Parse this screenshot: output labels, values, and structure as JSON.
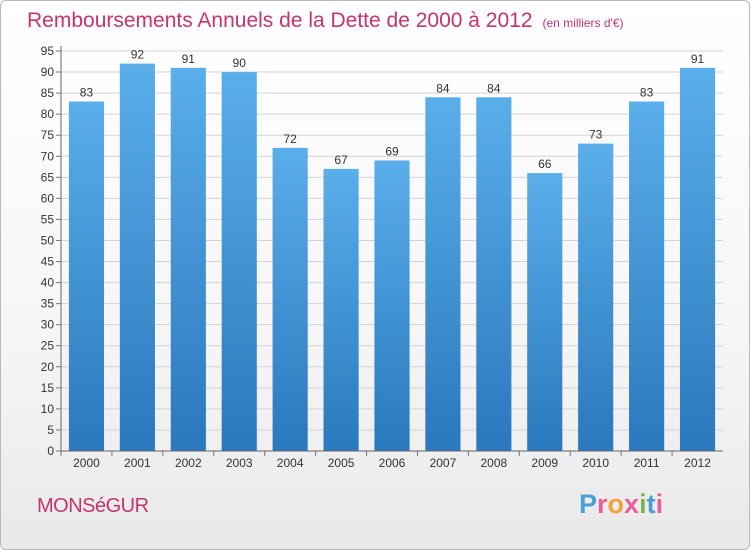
{
  "chart_data": {
    "type": "bar",
    "title": "Remboursements Annuels de la Dette de 2000 à 2012",
    "subtitle": "(en milliers d'€)",
    "categories": [
      "2000",
      "2001",
      "2002",
      "2003",
      "2004",
      "2005",
      "2006",
      "2007",
      "2008",
      "2009",
      "2010",
      "2011",
      "2012"
    ],
    "values": [
      83,
      92,
      91,
      90,
      72,
      67,
      69,
      84,
      84,
      66,
      73,
      83,
      91
    ],
    "ylim": [
      0,
      95
    ],
    "ytick_step": 5,
    "grid": true,
    "bar_color": "#3f8fd6"
  },
  "footer": {
    "city": "MONSéGUR",
    "logo_letters": [
      {
        "ch": "P",
        "color": "#4a9fd8"
      },
      {
        "ch": "r",
        "color": "#e85d9a"
      },
      {
        "ch": "o",
        "color": "#f2a23a"
      },
      {
        "ch": "x",
        "color": "#e85d9a"
      },
      {
        "ch": "i",
        "color": "#7ab648"
      },
      {
        "ch": "t",
        "color": "#4a9fd8"
      },
      {
        "ch": "i",
        "color": "#e85d9a"
      }
    ]
  }
}
